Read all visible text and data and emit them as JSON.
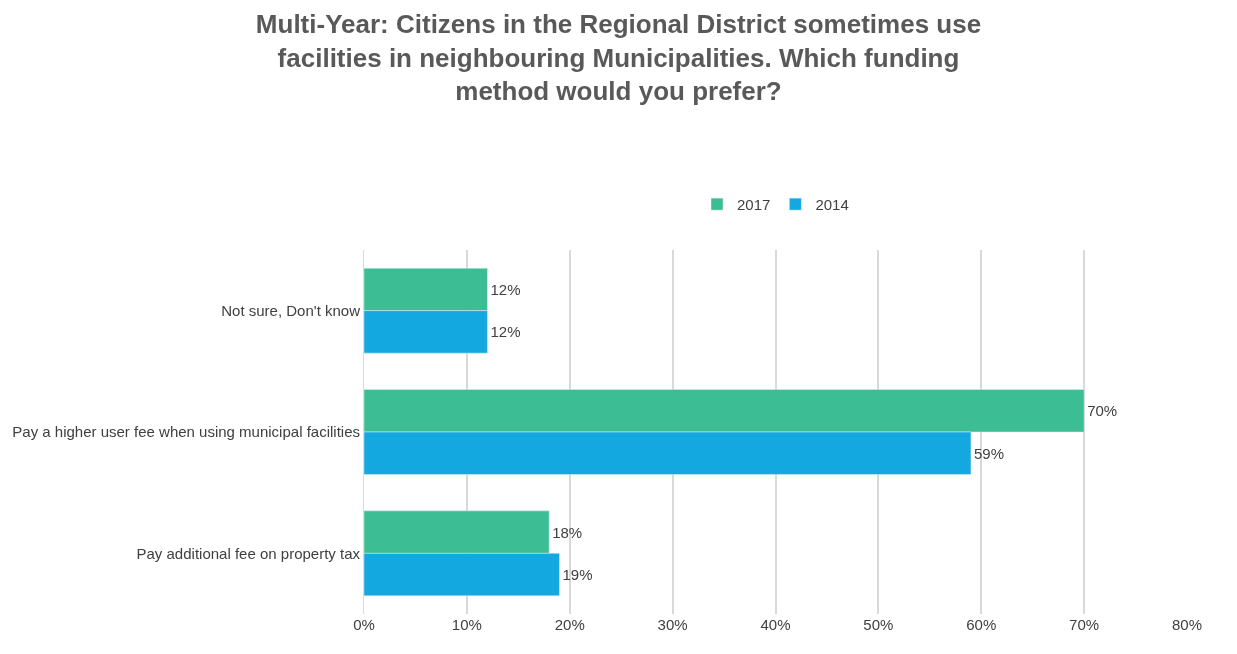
{
  "chart_data": {
    "type": "bar",
    "orientation": "horizontal",
    "title": "Multi-Year: Citizens in the Regional District sometimes use facilities in neighbouring Municipalities. Which funding method would you prefer?",
    "categories": [
      "Not sure, Don't know",
      "Pay a higher user fee when using municipal facilities",
      "Pay additional fee on property tax"
    ],
    "series": [
      {
        "name": "2017",
        "color": "#3dbd94",
        "values": [
          12,
          70,
          18
        ],
        "value_labels": [
          "12%",
          "70%",
          "18%"
        ]
      },
      {
        "name": "2014",
        "color": "#14a8e0",
        "values": [
          12,
          59,
          19
        ],
        "value_labels": [
          "12%",
          "59%",
          "19%"
        ]
      }
    ],
    "xlim": [
      0,
      80
    ],
    "xticks": [
      {
        "value": 0,
        "label": "0%"
      },
      {
        "value": 10,
        "label": "10%"
      },
      {
        "value": 20,
        "label": "20%"
      },
      {
        "value": 30,
        "label": "30%"
      },
      {
        "value": 40,
        "label": "40%"
      },
      {
        "value": 50,
        "label": "50%"
      },
      {
        "value": 60,
        "label": "60%"
      },
      {
        "value": 70,
        "label": "70%"
      },
      {
        "value": 80,
        "label": "80%"
      }
    ],
    "grid": "x",
    "legend": "top"
  }
}
